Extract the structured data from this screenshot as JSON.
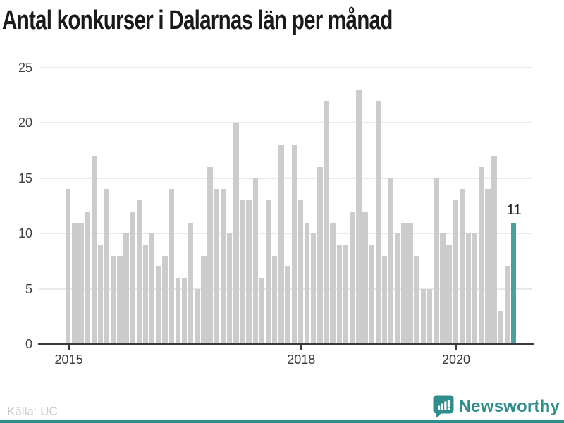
{
  "title": "Antal konkurser i Dalarnas län per månad",
  "source": "Källa: UC",
  "brand": {
    "name": "Newsworthy",
    "color": "#2f8e8c"
  },
  "chart_data": {
    "type": "bar",
    "title": "Antal konkurser i Dalarnas län per månad",
    "xlabel": "",
    "ylabel": "",
    "ylim": [
      0,
      25
    ],
    "yticks": [
      0,
      5,
      10,
      15,
      20,
      25
    ],
    "grid": true,
    "legend": false,
    "bar_color": "#cccccc",
    "highlight_color": "#4aa29e",
    "x": [
      "2015-01",
      "2015-02",
      "2015-03",
      "2015-04",
      "2015-05",
      "2015-06",
      "2015-07",
      "2015-08",
      "2015-09",
      "2015-10",
      "2015-11",
      "2015-12",
      "2016-01",
      "2016-02",
      "2016-03",
      "2016-04",
      "2016-05",
      "2016-06",
      "2016-07",
      "2016-08",
      "2016-09",
      "2016-10",
      "2016-11",
      "2016-12",
      "2017-01",
      "2017-02",
      "2017-03",
      "2017-04",
      "2017-05",
      "2017-06",
      "2017-07",
      "2017-08",
      "2017-09",
      "2017-10",
      "2017-11",
      "2017-12",
      "2018-01",
      "2018-02",
      "2018-03",
      "2018-04",
      "2018-05",
      "2018-06",
      "2018-07",
      "2018-08",
      "2018-09",
      "2018-10",
      "2018-11",
      "2018-12",
      "2019-01",
      "2019-02",
      "2019-03",
      "2019-04",
      "2019-05",
      "2019-06",
      "2019-07",
      "2019-08",
      "2019-09",
      "2019-10",
      "2019-11",
      "2019-12",
      "2020-01",
      "2020-02",
      "2020-03",
      "2020-04",
      "2020-05",
      "2020-06",
      "2020-07",
      "2020-08",
      "2020-09",
      "2020-10"
    ],
    "values": [
      14,
      11,
      11,
      12,
      17,
      9,
      14,
      8,
      8,
      10,
      12,
      13,
      9,
      10,
      7,
      8,
      14,
      6,
      6,
      11,
      5,
      8,
      16,
      14,
      14,
      10,
      20,
      13,
      13,
      15,
      6,
      13,
      8,
      18,
      7,
      18,
      13,
      11,
      10,
      16,
      22,
      11,
      9,
      9,
      12,
      23,
      12,
      9,
      22,
      8,
      15,
      10,
      11,
      11,
      8,
      5,
      5,
      15,
      10,
      9,
      13,
      14,
      10,
      10,
      16,
      14,
      17,
      3,
      7,
      11
    ],
    "xticks": [
      {
        "label": "2015",
        "month": "2015-01"
      },
      {
        "label": "2018",
        "month": "2018-01"
      },
      {
        "label": "2020",
        "month": "2020-01"
      }
    ],
    "highlight": {
      "month": "2020-10",
      "value": 11,
      "label": "11"
    }
  }
}
